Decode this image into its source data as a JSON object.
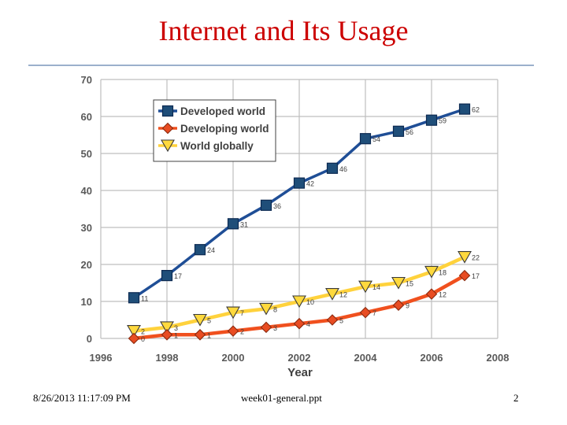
{
  "slide": {
    "title": "Internet and Its Usage",
    "footer_left": "8/26/2013 11:17:09 PM",
    "footer_center": "week01-general.ppt",
    "footer_right": "2"
  },
  "chart_data": {
    "type": "line",
    "title": "",
    "xlabel": "Year",
    "ylabel": "",
    "xlim": [
      1996,
      2008
    ],
    "ylim": [
      0,
      70
    ],
    "x_ticks": [
      "1996",
      "1998",
      "2000",
      "2002",
      "2004",
      "2006",
      "2008"
    ],
    "y_ticks": [
      "0",
      "10",
      "20",
      "30",
      "40",
      "50",
      "60",
      "70"
    ],
    "grid": true,
    "legend_position": "top-left",
    "x": [
      1997,
      1998,
      1999,
      2000,
      2001,
      2002,
      2003,
      2004,
      2005,
      2006,
      2007
    ],
    "series": [
      {
        "name": "Developed world",
        "marker": "square",
        "color": "#1f4e96",
        "marker_color": "#1f4e79",
        "values": [
          11,
          17,
          24,
          31,
          36,
          42,
          46,
          54,
          56,
          59,
          62
        ],
        "labels": [
          "11",
          "17",
          "24",
          "31",
          "36",
          "42",
          "46",
          "54",
          "56",
          "59",
          "62"
        ]
      },
      {
        "name": "Developing world",
        "marker": "diamond",
        "color": "#f0501e",
        "marker_color": "#e84c22",
        "values": [
          0,
          1,
          1,
          2,
          3,
          4,
          5,
          7,
          9,
          12,
          17
        ],
        "labels": [
          "0",
          "1",
          "1",
          "2",
          "3",
          "4",
          "5",
          "7",
          "9",
          "12",
          "17"
        ]
      },
      {
        "name": "World globally",
        "marker": "triangle-down",
        "color": "#ffd23c",
        "marker_color": "#ffd93d",
        "values": [
          2,
          3,
          5,
          7,
          8,
          10,
          12,
          14,
          15,
          18,
          22
        ],
        "labels": [
          "2",
          "3",
          "5",
          "7",
          "8",
          "10",
          "12",
          "14",
          "15",
          "18",
          "22"
        ]
      }
    ]
  }
}
